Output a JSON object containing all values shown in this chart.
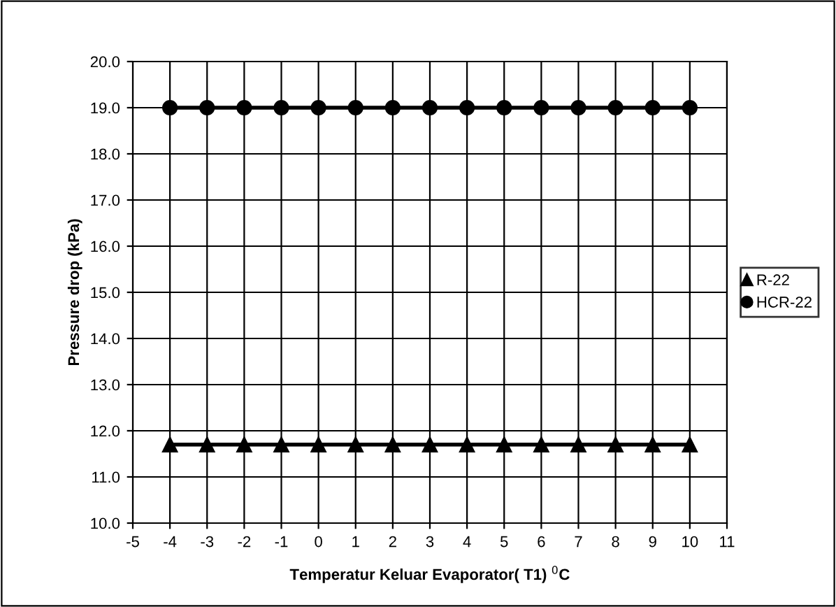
{
  "chart_data": {
    "type": "line",
    "xlabel": "Temperatur Keluar Evaporator( T1) $^{0}$C",
    "ylabel": "Pressure drop (kPa)",
    "x": [
      -4,
      -3,
      -2,
      -1,
      0,
      1,
      2,
      3,
      4,
      5,
      6,
      7,
      8,
      9,
      10
    ],
    "series": [
      {
        "name": "R-22",
        "color": "#000000",
        "marker": "triangle",
        "values": [
          11.7,
          11.7,
          11.7,
          11.7,
          11.7,
          11.7,
          11.7,
          11.7,
          11.7,
          11.7,
          11.7,
          11.7,
          11.7,
          11.7,
          11.7
        ]
      },
      {
        "name": "HCR-22",
        "color": "#000000",
        "marker": "circle",
        "values": [
          19.0,
          19.0,
          19.0,
          19.0,
          19.0,
          19.0,
          19.0,
          19.0,
          19.0,
          19.0,
          19.0,
          19.0,
          19.0,
          19.0,
          19.0
        ]
      }
    ],
    "xlim": [
      -5,
      11
    ],
    "xticks": [
      -5,
      -4,
      -3,
      -2,
      -1,
      0,
      1,
      2,
      3,
      4,
      5,
      6,
      7,
      8,
      9,
      10,
      11
    ],
    "ylim": [
      10.0,
      20.0
    ],
    "yticks": [
      {
        "value": 10,
        "label": "10.0"
      },
      {
        "value": 11,
        "label": "11.0"
      },
      {
        "value": 12,
        "label": "12.0"
      },
      {
        "value": 13,
        "label": "13.0"
      },
      {
        "value": 14,
        "label": "14.0"
      },
      {
        "value": 15,
        "label": "15.0"
      },
      {
        "value": 16,
        "label": "16.0"
      },
      {
        "value": 17,
        "label": "17.0"
      },
      {
        "value": 18,
        "label": "18.0"
      },
      {
        "value": 19,
        "label": "19.0"
      },
      {
        "value": 20,
        "label": "20.0"
      }
    ],
    "grid": true,
    "legend": "right",
    "line_style": "solid"
  }
}
